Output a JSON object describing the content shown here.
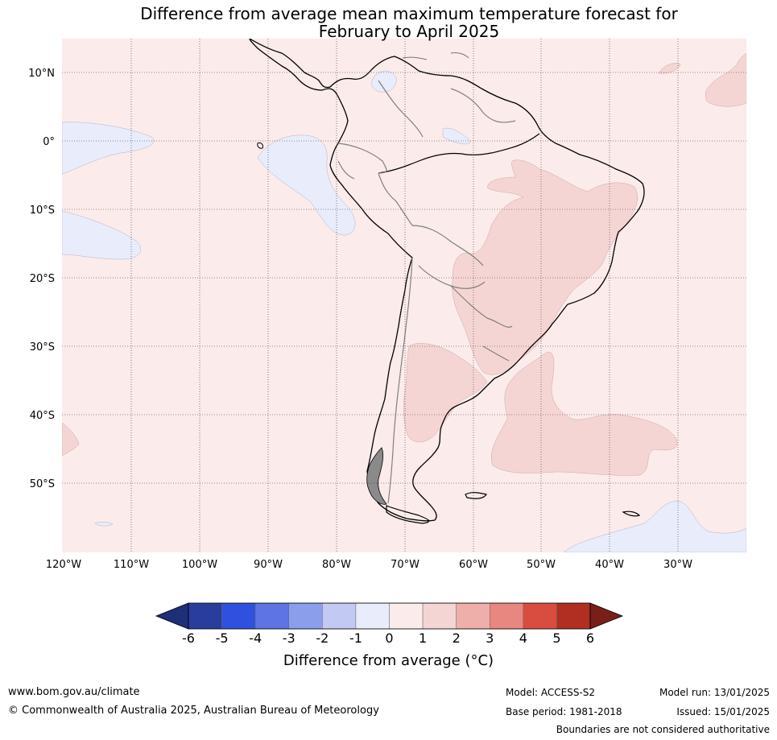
{
  "title_line1": "Difference from average mean maximum temperature forecast for",
  "title_line2": "February to April 2025",
  "lat_labels": [
    "10°N",
    "0°",
    "10°S",
    "20°S",
    "30°S",
    "40°S",
    "50°S"
  ],
  "lon_labels": [
    "120°W",
    "110°W",
    "100°W",
    "90°W",
    "80°W",
    "70°W",
    "60°W",
    "50°W",
    "40°W",
    "30°W"
  ],
  "colorbar": {
    "ticks": [
      "-6",
      "-5",
      "-4",
      "-3",
      "-2",
      "-1",
      "0",
      "1",
      "2",
      "3",
      "4",
      "5",
      "6"
    ],
    "colors": [
      "#293d9e",
      "#3050e0",
      "#5e74e4",
      "#8a9eec",
      "#c2caf4",
      "#e8ecfb",
      "#fbebea",
      "#f5d5d4",
      "#eeaeaa",
      "#e8877f",
      "#d94c40",
      "#b02e22"
    ],
    "low_extend_color": "#1f2e78",
    "high_extend_color": "#7a1f18",
    "label": "Difference from average (°C)"
  },
  "footer": {
    "website": "www.bom.gov.au/climate",
    "copyright": "© Commonwealth of Australia 2025, Australian Bureau of Meteorology",
    "model": "Model: ACCESS-S2",
    "base_period": "Base period: 1981-2018",
    "model_run": "Model run: 13/01/2025",
    "issued": "Issued: 15/01/2025",
    "disclaimer": "Boundaries are not considered authoritative"
  }
}
